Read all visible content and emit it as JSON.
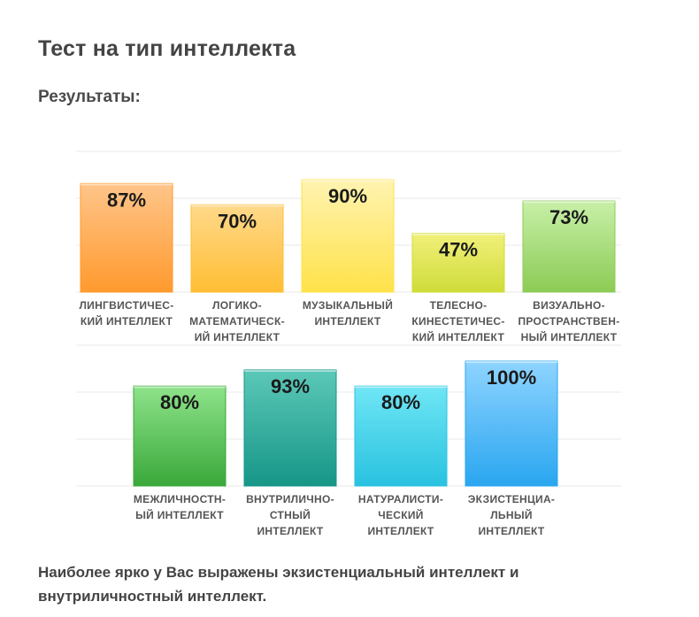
{
  "header": {
    "title": "Тест на тип интеллекта",
    "subtitle": "Результаты:"
  },
  "conclusion": "Наиболее ярко у Вас выражены экзистенциальный интеллект и внутриличностный интеллект.",
  "chart_data": [
    {
      "type": "bar",
      "ylim": [
        0,
        100
      ],
      "grid": true,
      "categories": [
        [
          "ЛИНГВИСТИЧЕС-",
          "КИЙ ИНТЕЛЛЕКТ"
        ],
        [
          "ЛОГИКО-",
          "МАТЕМАТИЧЕСК-",
          "ИЙ ИНТЕЛЛЕКТ"
        ],
        [
          "МУЗЫКАЛЬНЫЙ",
          "ИНТЕЛЛЕКТ"
        ],
        [
          "ТЕЛЕСНО-",
          "КИНЕСТЕТИЧЕС-",
          "КИЙ ИНТЕЛЛЕКТ"
        ],
        [
          "ВИЗУАЛЬНО-",
          "ПРОСТРАНСТВЕН-",
          "НЫЙ ИНТЕЛЛЕКТ"
        ]
      ],
      "values": [
        87,
        70,
        90,
        47,
        73
      ],
      "value_labels": [
        "87%",
        "70%",
        "90%",
        "47%",
        "73%"
      ],
      "colors": [
        [
          "#ffc58a",
          "#ff9a2e"
        ],
        [
          "#ffd98a",
          "#ffbe34"
        ],
        [
          "#fff3b0",
          "#ffe24a"
        ],
        [
          "#f1f07a",
          "#cfdc3a"
        ],
        [
          "#c8f0a8",
          "#8ccb55"
        ]
      ]
    },
    {
      "type": "bar",
      "ylim": [
        0,
        100
      ],
      "grid": true,
      "categories": [
        [
          "МЕЖЛИЧНОСТН-",
          "ЫЙ ИНТЕЛЛЕКТ"
        ],
        [
          "ВНУТРИЛИЧНО-",
          "СТНЫЙ",
          "ИНТЕЛЛЕКТ"
        ],
        [
          "НАТУРАЛИСТИ-",
          "ЧЕСКИЙ",
          "ИНТЕЛЛЕКТ"
        ],
        [
          "ЭКЗИСТЕНЦИА-",
          "ЛЬНЫЙ",
          "ИНТЕЛЛЕКТ"
        ]
      ],
      "values": [
        80,
        93,
        80,
        100
      ],
      "value_labels": [
        "80%",
        "93%",
        "80%",
        "100%"
      ],
      "colors": [
        [
          "#8ee38a",
          "#3aa83a"
        ],
        [
          "#5cc8b8",
          "#169687"
        ],
        [
          "#6fe6f5",
          "#29c2e0"
        ],
        [
          "#8ed4ff",
          "#2aa6f0"
        ]
      ]
    }
  ]
}
